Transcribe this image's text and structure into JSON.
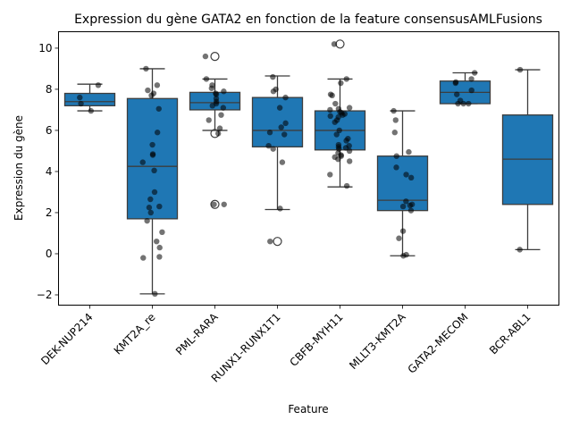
{
  "chart_data": {
    "type": "box",
    "title": "Expression du gène GATA2 en fonction de la feature consensusAMLFusions",
    "xlabel": "Feature",
    "ylabel": "Expression du gène",
    "ylim": [
      -2.5,
      10.8
    ],
    "yticks": [
      -2,
      0,
      2,
      4,
      6,
      8,
      10
    ],
    "box_color": "#1f77b4",
    "categories": [
      "DEK-NUP214",
      "KMT2A_re",
      "PML-RARA",
      "RUNX1-RUNX1T1",
      "CBFB-MYH11",
      "MLLT3-KMT2A",
      "GATA2-MECOM",
      "BCR-ABL1"
    ],
    "boxes": [
      {
        "q1": 7.2,
        "median": 7.4,
        "q3": 7.8,
        "whisker_low": 6.95,
        "whisker_high": 8.25,
        "outliers": []
      },
      {
        "q1": 1.7,
        "median": 4.25,
        "q3": 7.55,
        "whisker_low": -1.95,
        "whisker_high": 9.0,
        "outliers": []
      },
      {
        "q1": 7.0,
        "median": 7.35,
        "q3": 7.85,
        "whisker_low": 6.0,
        "whisker_high": 8.5,
        "outliers": [
          9.6,
          5.85,
          2.4
        ]
      },
      {
        "q1": 5.2,
        "median": 6.0,
        "q3": 7.6,
        "whisker_low": 2.15,
        "whisker_high": 8.65,
        "outliers": [
          0.6
        ]
      },
      {
        "q1": 5.05,
        "median": 6.0,
        "q3": 6.95,
        "whisker_low": 3.25,
        "whisker_high": 8.5,
        "outliers": [
          10.2
        ]
      },
      {
        "q1": 2.1,
        "median": 2.6,
        "q3": 4.75,
        "whisker_low": -0.1,
        "whisker_high": 6.95,
        "outliers": []
      },
      {
        "q1": 7.3,
        "median": 7.85,
        "q3": 8.4,
        "whisker_low": 7.3,
        "whisker_high": 8.8,
        "outliers": []
      },
      {
        "q1": 2.4,
        "median": 4.6,
        "q3": 6.75,
        "whisker_low": 0.2,
        "whisker_high": 8.95,
        "outliers": []
      }
    ],
    "points": [
      [
        7.6,
        8.2,
        7.3,
        6.95
      ],
      [
        9.0,
        8.2,
        7.8,
        7.7,
        7.95,
        7.05,
        5.9,
        5.3,
        4.85,
        4.8,
        4.45,
        4.05,
        3.0,
        2.65,
        2.3,
        2.25,
        2.0,
        1.6,
        1.05,
        0.6,
        0.3,
        -0.15,
        -0.2,
        -1.95
      ],
      [
        9.6,
        8.5,
        8.2,
        8.05,
        7.9,
        7.8,
        7.75,
        7.55,
        7.4,
        7.3,
        7.2,
        7.1,
        6.75,
        6.5,
        6.1,
        5.85,
        2.4,
        2.4
      ],
      [
        8.6,
        8.0,
        7.9,
        7.6,
        7.1,
        6.35,
        6.15,
        5.9,
        5.8,
        5.25,
        5.1,
        4.45,
        2.2,
        0.6
      ],
      [
        10.2,
        8.5,
        8.3,
        7.75,
        7.7,
        7.3,
        7.1,
        7.05,
        7.0,
        6.9,
        6.85,
        6.8,
        6.75,
        6.7,
        6.65,
        6.5,
        6.4,
        6.0,
        5.8,
        5.6,
        5.5,
        5.3,
        5.25,
        5.2,
        5.15,
        5.1,
        5.0,
        4.9,
        4.8,
        4.75,
        4.7,
        4.6,
        4.5,
        3.85,
        3.3
      ],
      [
        6.95,
        6.5,
        5.9,
        4.95,
        4.75,
        4.2,
        3.85,
        3.7,
        2.55,
        2.4,
        2.35,
        2.3,
        2.1,
        1.1,
        0.75,
        -0.05,
        -0.1
      ],
      [
        8.8,
        8.5,
        8.35,
        8.3,
        7.95,
        7.75,
        7.45,
        7.3,
        7.3,
        7.3
      ],
      [
        8.95,
        0.2
      ]
    ]
  }
}
